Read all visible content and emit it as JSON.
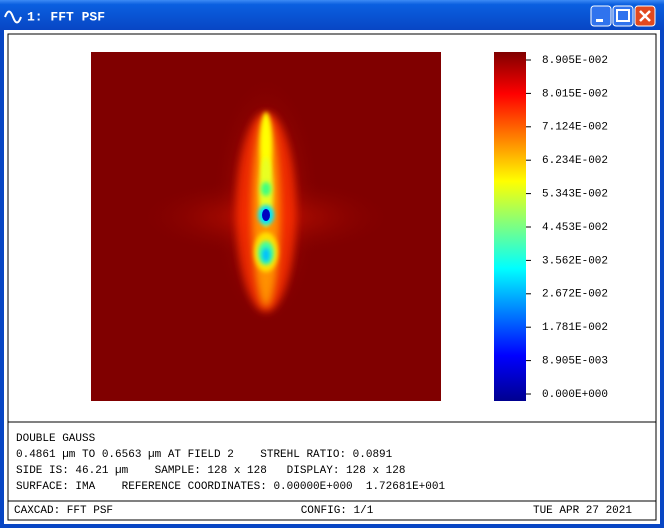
{
  "window": {
    "title": "1: FFT PSF"
  },
  "colorbar": {
    "labels": [
      "8.905E-002",
      "8.015E-002",
      "7.124E-002",
      "6.234E-002",
      "5.343E-002",
      "4.453E-002",
      "3.562E-002",
      "2.672E-002",
      "1.781E-002",
      "8.905E-003",
      "0.000E+000"
    ]
  },
  "info": {
    "lines": [
      "DOUBLE GAUSS",
      "0.4861 µm TO 0.6563 µm AT FIELD 2    STREHL RATIO: 0.0891",
      "SIDE IS: 46.21 µm    SAMPLE: 128 x 128   DISPLAY: 128 x 128",
      "SURFACE: IMA    REFERENCE COORDINATES: 0.00000E+000  1.72681E+001"
    ]
  },
  "footer": {
    "left": "CAXCAD: FFT PSF",
    "center": "CONFIG: 1/1",
    "right": "TUE APR 27 2021"
  }
}
